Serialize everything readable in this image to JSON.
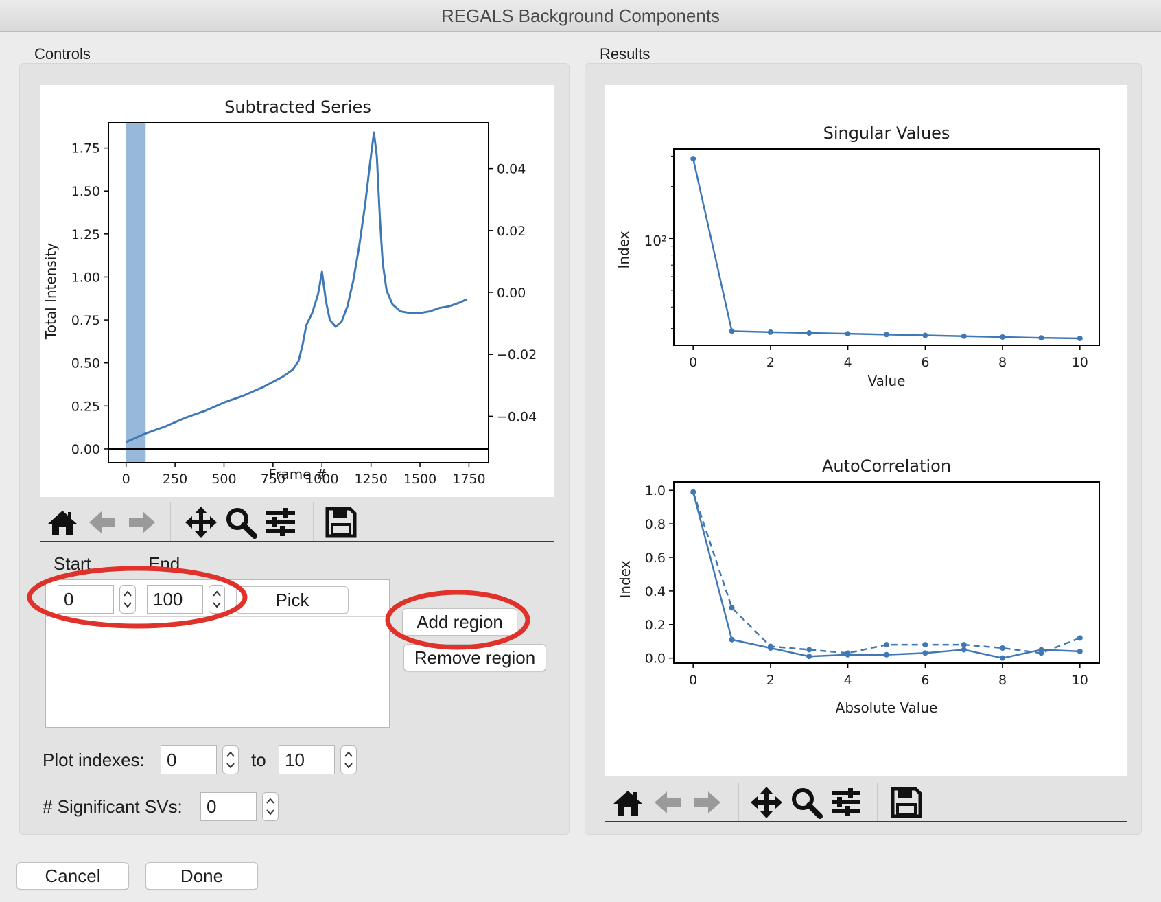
{
  "window": {
    "title": "REGALS Background Components"
  },
  "controls": {
    "group_label": "Controls",
    "region_header": {
      "start_label": "Start",
      "end_label": "End"
    },
    "region_row": {
      "start_value": "0",
      "end_value": "100",
      "pick_label": "Pick"
    },
    "add_region_label": "Add region",
    "remove_region_label": "Remove region",
    "plot_indexes": {
      "label": "Plot indexes:",
      "from_value": "0",
      "to_label": "to",
      "to_value": "10"
    },
    "significant_svs": {
      "label": "# Significant SVs:",
      "value": "0"
    }
  },
  "results": {
    "group_label": "Results"
  },
  "footer": {
    "cancel_label": "Cancel",
    "done_label": "Done"
  },
  "toolbar_icons": [
    "home-icon",
    "back-arrow-icon",
    "forward-arrow-icon",
    "pan-icon",
    "zoom-icon",
    "configure-subplots-icon",
    "save-icon"
  ],
  "colors": {
    "line": "#3f78b5",
    "region_span": "#97b8d8",
    "annotation_red": "#e0322a"
  },
  "chart_data": [
    {
      "type": "line",
      "title": "Subtracted Series",
      "xlabel": "Frame #",
      "ylabel": "Total Intensity",
      "xlim": [
        -90,
        1850
      ],
      "ylim": [
        -0.08,
        1.9
      ],
      "xticks": [
        "0",
        "250",
        "500",
        "750",
        "1000",
        "1250",
        "1500",
        "1750"
      ],
      "yticks": [
        "0.00",
        "0.25",
        "0.50",
        "0.75",
        "1.00",
        "1.25",
        "1.50",
        "1.75"
      ],
      "y2ticks": [
        "0.04",
        "0.02",
        "0.00",
        "−0.02",
        "−0.04"
      ],
      "highlight_region": [
        0,
        100
      ],
      "x": [
        0,
        100,
        200,
        300,
        400,
        500,
        600,
        700,
        800,
        850,
        880,
        900,
        920,
        950,
        980,
        1000,
        1020,
        1040,
        1070,
        1100,
        1130,
        1160,
        1190,
        1220,
        1245,
        1265,
        1280,
        1295,
        1310,
        1330,
        1360,
        1400,
        1450,
        1500,
        1550,
        1600,
        1650,
        1700,
        1740
      ],
      "values": [
        0.04,
        0.09,
        0.13,
        0.18,
        0.22,
        0.27,
        0.31,
        0.36,
        0.42,
        0.46,
        0.51,
        0.6,
        0.72,
        0.79,
        0.9,
        1.03,
        0.86,
        0.75,
        0.71,
        0.74,
        0.83,
        0.98,
        1.18,
        1.42,
        1.66,
        1.84,
        1.7,
        1.35,
        1.08,
        0.92,
        0.84,
        0.8,
        0.79,
        0.79,
        0.8,
        0.82,
        0.83,
        0.85,
        0.87
      ]
    },
    {
      "type": "line",
      "title": "Singular Values",
      "xlabel": "Value",
      "ylabel": "Index",
      "yscale": "log",
      "ytick_label": "10²",
      "xticks": [
        "0",
        "2",
        "4",
        "6",
        "8",
        "10"
      ],
      "x": [
        0,
        1,
        2,
        3,
        4,
        5,
        6,
        7,
        8,
        9,
        10
      ],
      "values": [
        290,
        29,
        28.6,
        28.3,
        28,
        27.7,
        27.4,
        27.1,
        26.8,
        26.5,
        26.3
      ]
    },
    {
      "type": "line",
      "title": "AutoCorrelation",
      "xlabel": "Absolute Value",
      "ylabel": "Index",
      "ylim": [
        -0.03,
        1.05
      ],
      "xticks": [
        "0",
        "2",
        "4",
        "6",
        "8",
        "10"
      ],
      "yticks": [
        "0.0",
        "0.2",
        "0.4",
        "0.6",
        "0.8",
        "1.0"
      ],
      "series": [
        {
          "style": "solid",
          "x": [
            0,
            1,
            2,
            3,
            4,
            5,
            6,
            7,
            8,
            9,
            10
          ],
          "values": [
            0.99,
            0.11,
            0.06,
            0.01,
            0.02,
            0.02,
            0.03,
            0.05,
            0.0,
            0.05,
            0.04
          ]
        },
        {
          "style": "dashed",
          "x": [
            0,
            1,
            2,
            3,
            4,
            5,
            6,
            7,
            8,
            9,
            10
          ],
          "values": [
            0.99,
            0.3,
            0.07,
            0.05,
            0.03,
            0.08,
            0.08,
            0.08,
            0.06,
            0.03,
            0.12
          ]
        }
      ]
    }
  ]
}
